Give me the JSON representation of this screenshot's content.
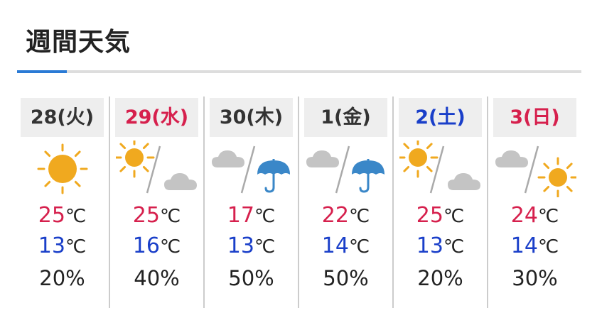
{
  "title": "週間天気",
  "colors": {
    "high": "#d6204d",
    "low": "#1a3fc9",
    "saturday": "#1a3fc9",
    "holiday": "#d6204d",
    "accent": "#2a7ad5"
  },
  "unit": "℃",
  "days": [
    {
      "label": "28(火)",
      "color": "#333333",
      "icon": "sun",
      "high": "25",
      "low": "13",
      "pop": "20%"
    },
    {
      "label": "29(水)",
      "color": "#d6204d",
      "icon": "sun/cloud",
      "high": "25",
      "low": "16",
      "pop": "40%"
    },
    {
      "label": "30(木)",
      "color": "#333333",
      "icon": "cloud/rain",
      "high": "17",
      "low": "13",
      "pop": "50%"
    },
    {
      "label": "1(金)",
      "color": "#333333",
      "icon": "cloud/rain",
      "high": "22",
      "low": "14",
      "pop": "50%"
    },
    {
      "label": "2(土)",
      "color": "#1a3fc9",
      "icon": "sun/cloud",
      "high": "25",
      "low": "13",
      "pop": "20%"
    },
    {
      "label": "3(日)",
      "color": "#d6204d",
      "icon": "cloud/sun",
      "high": "24",
      "low": "14",
      "pop": "30%"
    }
  ]
}
